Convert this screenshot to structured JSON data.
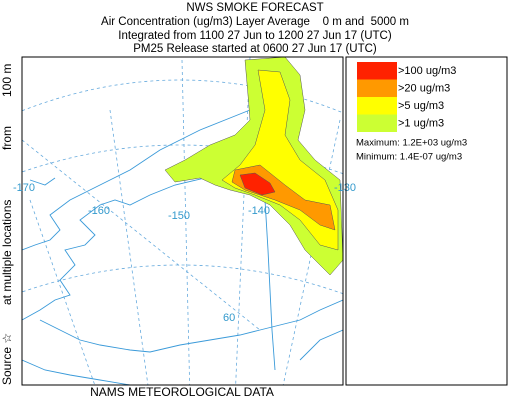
{
  "header": {
    "title": "NWS SMOKE FORECAST",
    "lines": [
      "Air Concentration (ug/m3) Layer Average    0 m and  5000 m",
      "Integrated from 1100 27 Jun to 1200 27 Jun 17 (UTC)",
      "PM25 Release started at 0600 27 Jun 17 (UTC)"
    ]
  },
  "map": {
    "lon_labels": [
      "-170",
      "-160",
      "-150",
      "-140",
      "-130"
    ],
    "lat_labels": [
      "60"
    ],
    "footer": "NAMS METEOROLOGICAL DATA",
    "side_labels": [
      "Source ☆",
      "at multiple locations",
      "from",
      "100 m"
    ]
  },
  "legend": {
    "entries": [
      {
        "label": ">100 ug/m3",
        "color": "#ff2200"
      },
      {
        "label": ">20 ug/m3",
        "color": "#ff9900"
      },
      {
        "label": ">5 ug/m3",
        "color": "#ffff00"
      },
      {
        "label": ">1 ug/m3",
        "color": "#ccff33"
      }
    ],
    "maximum": "Maximum: 1.2E+03 ug/m3",
    "minimum": "Minimum: 1.4E-07 ug/m3"
  }
}
